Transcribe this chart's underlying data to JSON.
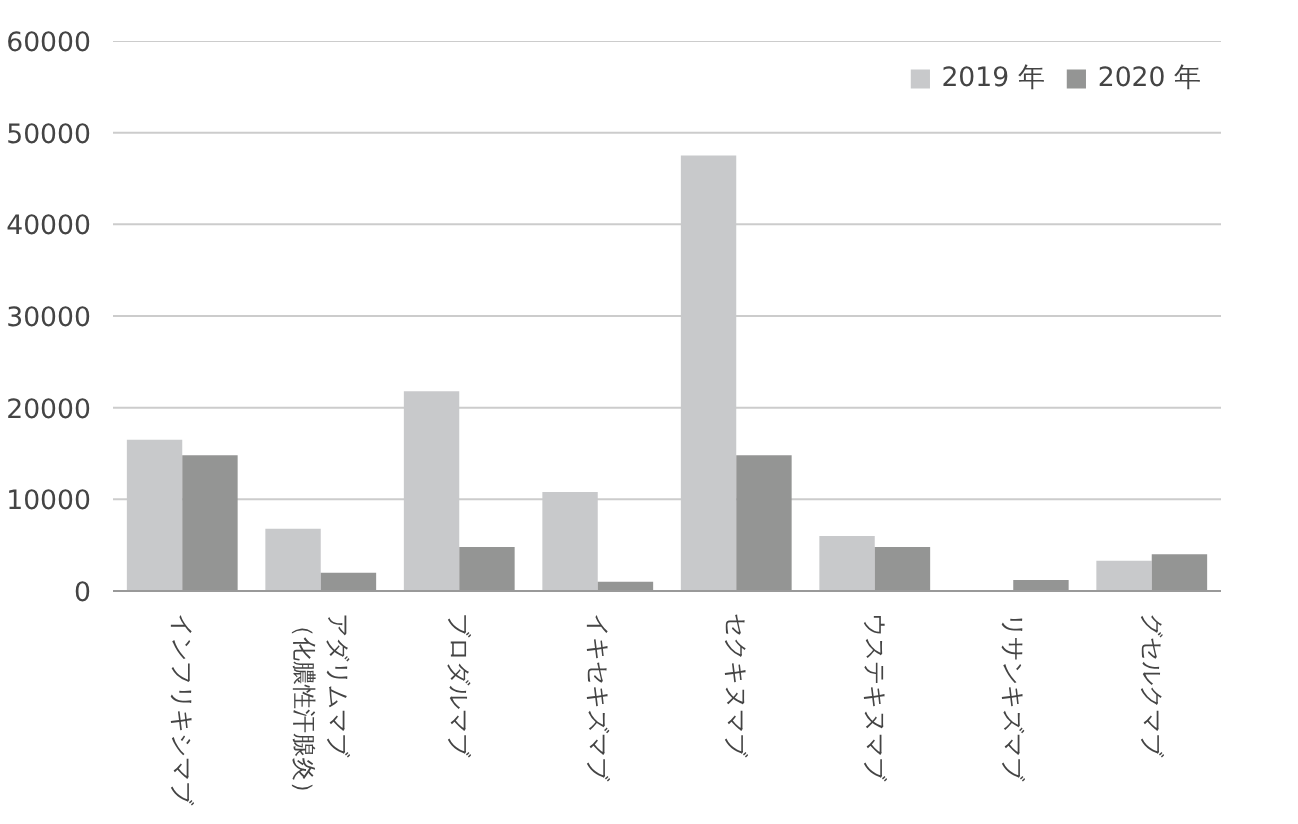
{
  "chart_data": {
    "type": "bar",
    "categories": [
      "インフリキシマブ",
      "アダリムマブ（化膿性汗腺炎）",
      "ブロダルマブ",
      "イキセキズマブ",
      "セクキヌマブ",
      "ウステキヌマブ",
      "リサンキズマブ",
      "グセルクマブ"
    ],
    "series": [
      {
        "name": "2019 年",
        "color": "#c8c9cb",
        "values": [
          16500,
          6800,
          21800,
          10800,
          47500,
          6000,
          null,
          3300
        ]
      },
      {
        "name": "2020 年",
        "color": "#949594",
        "values": [
          14800,
          2000,
          4800,
          1000,
          14800,
          4800,
          1200,
          4000
        ]
      }
    ],
    "ylim": [
      0,
      60000
    ],
    "yticks": [
      0,
      10000,
      20000,
      30000,
      40000,
      50000,
      60000
    ],
    "grid": "y",
    "legend": "top right"
  }
}
